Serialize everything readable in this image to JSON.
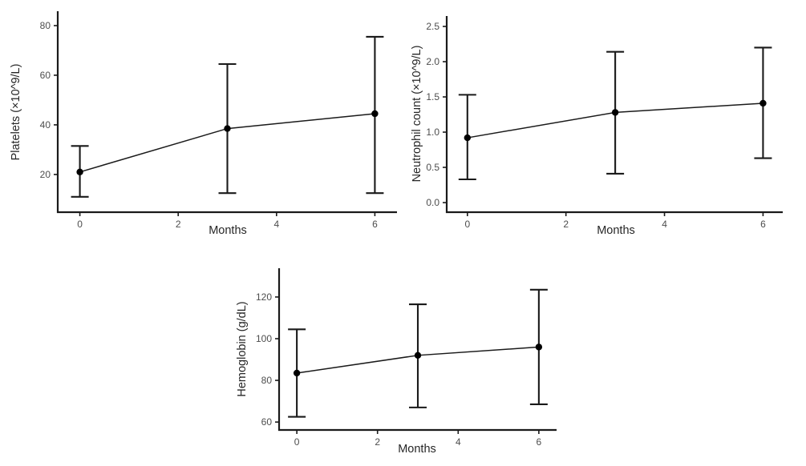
{
  "page": {
    "background": "#ffffff",
    "description": "Three-panel figure of laboratory values over time with mean points and error bars"
  },
  "style": {
    "background": "#ffffff",
    "axis_color": "#1a1a1a",
    "line_color": "#1a1a1a",
    "point_color": "#000000",
    "errorbar_color": "#1a1a1a",
    "tick_label_color": "#4d4d4d",
    "axis_title_color": "#262626"
  },
  "chart_data": [
    {
      "id": "platelets",
      "type": "line",
      "title": "",
      "ylabel": "Platelets (×10^9/L)",
      "xlabel": "Months",
      "x": [
        0,
        3,
        6
      ],
      "series": [
        {
          "name": "mean",
          "values": [
            21,
            38.5,
            44.5
          ]
        }
      ],
      "error_low": [
        11,
        12.5,
        12.5
      ],
      "error_high": [
        31.5,
        64.5,
        75.5
      ],
      "xticks": {
        "values": [
          0,
          2,
          4,
          6
        ],
        "labels": [
          "0",
          "2",
          "4",
          "6"
        ]
      },
      "yticks": {
        "values": [
          20,
          40,
          60,
          80
        ],
        "labels": [
          "20",
          "40",
          "60",
          "80"
        ]
      },
      "xlim": [
        -0.45,
        6.45
      ],
      "ylim": [
        4.8,
        85.8
      ],
      "grid": false,
      "legend": "none"
    },
    {
      "id": "neutrophils",
      "type": "line",
      "title": "",
      "ylabel": "Neutrophil count (×10^9/L)",
      "xlabel": "Months",
      "x": [
        0,
        3,
        6
      ],
      "series": [
        {
          "name": "mean",
          "values": [
            0.92,
            1.28,
            1.41
          ]
        }
      ],
      "error_low": [
        0.33,
        0.41,
        0.63
      ],
      "error_high": [
        1.53,
        2.14,
        2.2
      ],
      "xticks": {
        "values": [
          0,
          2,
          4,
          6
        ],
        "labels": [
          "0",
          "2",
          "4",
          "6"
        ]
      },
      "yticks": {
        "values": [
          0,
          0.5,
          1,
          1.5,
          2,
          2.5
        ],
        "labels": [
          "0.0",
          "0.5",
          "1.0",
          "1.5",
          "2.0",
          "2.5"
        ]
      },
      "xlim": [
        -0.42,
        6.4
      ],
      "ylim": [
        -0.136,
        2.648
      ],
      "grid": false,
      "legend": "none"
    },
    {
      "id": "hemoglobin",
      "type": "line",
      "title": "",
      "ylabel": "Hemoglobin (g/dL)",
      "xlabel": "Months",
      "x": [
        0,
        3,
        6
      ],
      "series": [
        {
          "name": "mean",
          "values": [
            83.5,
            92,
            96
          ]
        }
      ],
      "error_low": [
        62.5,
        67,
        68.5
      ],
      "error_high": [
        104.5,
        116.5,
        123.5
      ],
      "xticks": {
        "values": [
          0,
          2,
          4,
          6
        ],
        "labels": [
          "0",
          "2",
          "4",
          "6"
        ]
      },
      "yticks": {
        "values": [
          60,
          80,
          100,
          120
        ],
        "labels": [
          "60",
          "80",
          "100",
          "120"
        ]
      },
      "xlim": [
        -0.44,
        6.44
      ],
      "ylim": [
        56.2,
        133.8
      ],
      "grid": false,
      "legend": "none"
    }
  ]
}
